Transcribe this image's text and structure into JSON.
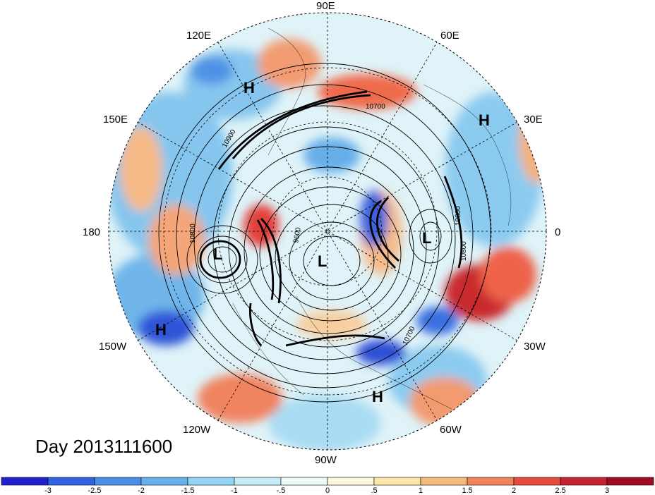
{
  "map": {
    "projection": "polar-stereographic",
    "longitude_labels": [
      {
        "text": "90E"
      },
      {
        "text": "60E"
      },
      {
        "text": "120E"
      },
      {
        "text": "30E"
      },
      {
        "text": "150E"
      },
      {
        "text": "180"
      },
      {
        "text": "0"
      },
      {
        "text": "150W"
      },
      {
        "text": "30W"
      },
      {
        "text": "120W"
      },
      {
        "text": "60W"
      },
      {
        "text": "90W"
      }
    ],
    "pressure_centers": [
      {
        "type": "H"
      },
      {
        "type": "H"
      },
      {
        "type": "L"
      },
      {
        "type": "L"
      },
      {
        "type": "L"
      },
      {
        "type": "H"
      },
      {
        "type": "H"
      }
    ],
    "contour_labels": [
      "10700",
      "10900",
      "10800",
      "9600",
      "10800",
      "10700",
      "10800"
    ],
    "colors": {
      "neg_strong": "#2a2ad6",
      "neg_mid": "#56a4e8",
      "neg_light": "#bfe9f5",
      "neutral": "#fbf6e4",
      "pos_light": "#f9c38c",
      "pos_mid": "#ef5b45",
      "pos_strong": "#a30f24"
    }
  },
  "title": "Day 2013111600",
  "colorbar": {
    "colors": [
      "#2020d0",
      "#2f63e0",
      "#4a8fe7",
      "#68b1ee",
      "#93d3f3",
      "#c4edf7",
      "#ecfbf8",
      "#fdf8dc",
      "#fbe6a8",
      "#f6b97e",
      "#f0845d",
      "#e84b3e",
      "#c5222f",
      "#9e0b22"
    ],
    "labels": [
      "-3",
      "-2.5",
      "-2",
      "-1.5",
      "-1",
      "-.5",
      "0",
      ".5",
      "1",
      "1.5",
      "2",
      "2.5",
      "3"
    ]
  }
}
